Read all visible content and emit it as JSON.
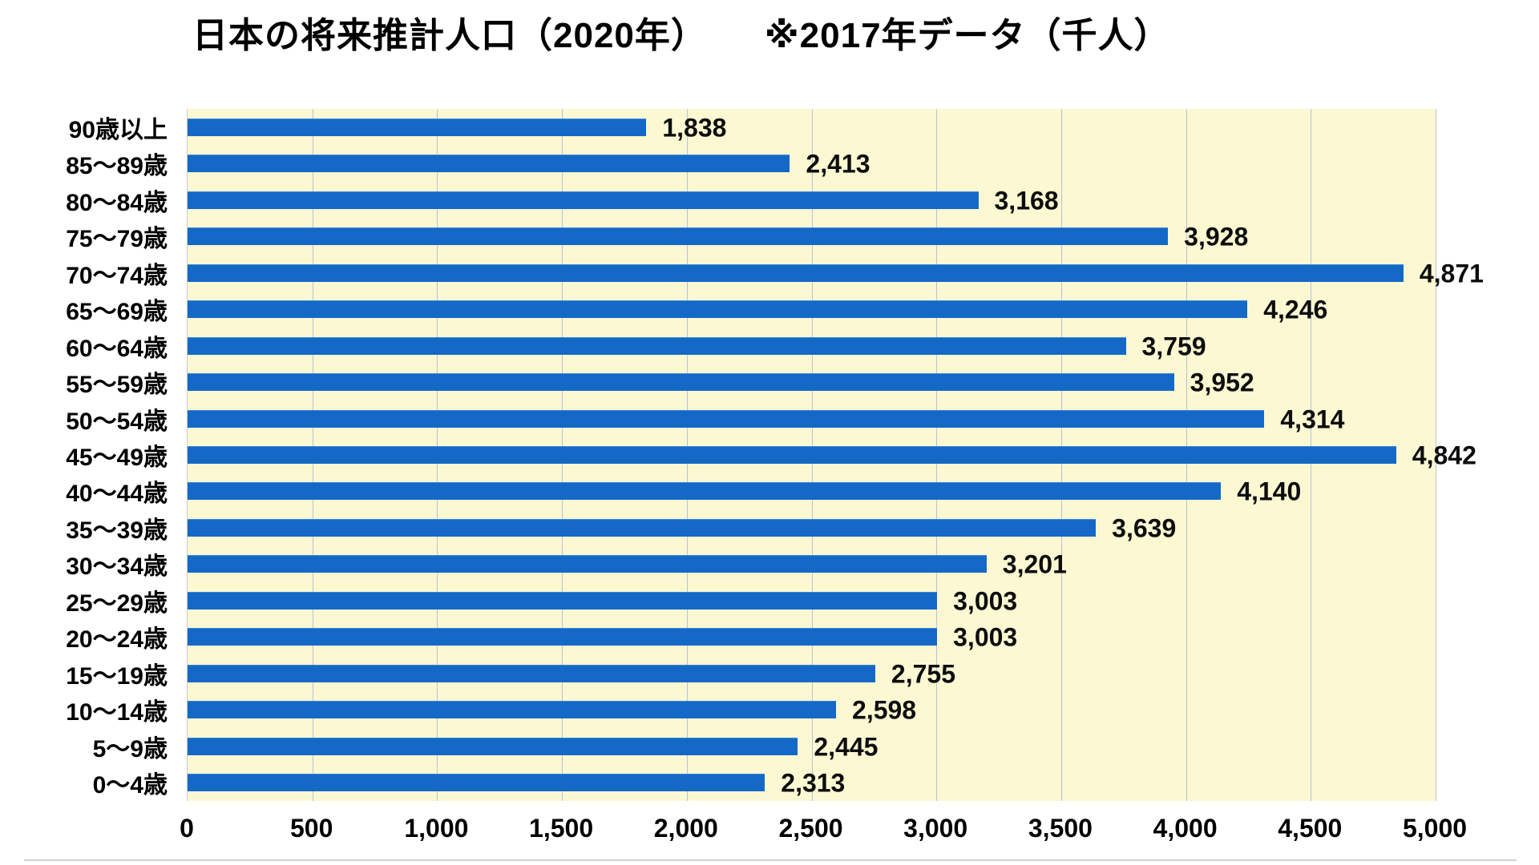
{
  "title": {
    "main": "日本の将来推計人口（2020年）",
    "note": "※2017年データ（千人）"
  },
  "chart_data": {
    "type": "bar",
    "orientation": "horizontal",
    "title": "日本の将来推計人口（2020年） ※2017年データ（千人）",
    "unit": "千人",
    "categories": [
      "90歳以上",
      "85〜89歳",
      "80〜84歳",
      "75〜79歳",
      "70〜74歳",
      "65〜69歳",
      "60〜64歳",
      "55〜59歳",
      "50〜54歳",
      "45〜49歳",
      "40〜44歳",
      "35〜39歳",
      "30〜34歳",
      "25〜29歳",
      "20〜24歳",
      "15〜19歳",
      "10〜14歳",
      "5〜9歳",
      "0〜4歳"
    ],
    "values": [
      1838,
      2413,
      3168,
      3928,
      4871,
      4246,
      3759,
      3952,
      4314,
      4842,
      4140,
      3639,
      3201,
      3003,
      3003,
      2755,
      2598,
      2445,
      2313
    ],
    "value_labels": [
      "1,838",
      "2,413",
      "3,168",
      "3,928",
      "4,871",
      "4,246",
      "3,759",
      "3,952",
      "4,314",
      "4,842",
      "4,140",
      "3,639",
      "3,201",
      "3,003",
      "3,003",
      "2,755",
      "2,598",
      "2,445",
      "2,313"
    ],
    "xlim": [
      0,
      5000
    ],
    "x_ticks": [
      0,
      500,
      1000,
      1500,
      2000,
      2500,
      3000,
      3500,
      4000,
      4500,
      5000
    ],
    "x_tick_labels": [
      "0",
      "500",
      "1,000",
      "1,500",
      "2,000",
      "2,500",
      "3,000",
      "3,500",
      "4,000",
      "4,500",
      "5,000"
    ],
    "grid": true,
    "legend": "none",
    "colors": {
      "bar": "#1569c6",
      "plot_background": "#fbf8d2",
      "gridline": "#b9c2d4",
      "text": "#000000",
      "page_background": "#ffffff"
    }
  }
}
